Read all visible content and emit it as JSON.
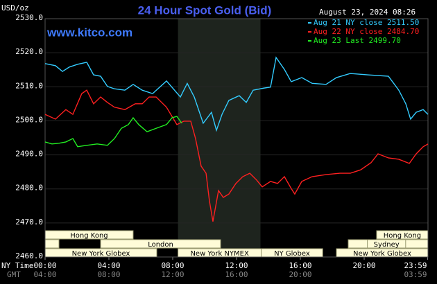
{
  "chart_data": {
    "type": "line",
    "title": "24 Hour Spot Gold (Bid)",
    "timestamp": "August 23, 2024 08:26",
    "source": "www.kitco.com",
    "unit_label": "USD/oz",
    "x_row_label": "NY Time",
    "x2_row_label": "GMT",
    "xlim": [
      0,
      24
    ],
    "ylim": [
      2460,
      2530
    ],
    "xticks": [
      {
        "value": 0,
        "label": "00:00"
      },
      {
        "value": 4,
        "label": "04:00"
      },
      {
        "value": 8,
        "label": "08:00"
      },
      {
        "value": 12,
        "label": "12:00"
      },
      {
        "value": 16,
        "label": "16:00"
      },
      {
        "value": 20,
        "label": "20:00"
      },
      {
        "value": 23.98,
        "label": "23:59"
      }
    ],
    "x2ticks": [
      {
        "value": 0,
        "label": "04:00"
      },
      {
        "value": 4,
        "label": "08:00"
      },
      {
        "value": 8,
        "label": "12:00"
      },
      {
        "value": 12,
        "label": "16:00"
      },
      {
        "value": 16,
        "label": "20:00"
      },
      {
        "value": 23.98,
        "label": "03:59"
      }
    ],
    "yticks": [
      {
        "value": 2460,
        "label": "2460.0"
      },
      {
        "value": 2470,
        "label": "2470.0"
      },
      {
        "value": 2480,
        "label": "2480.0"
      },
      {
        "value": 2490,
        "label": "2490.0"
      },
      {
        "value": 2500,
        "label": "2500.0"
      },
      {
        "value": 2510,
        "label": "2510.0"
      },
      {
        "value": 2520,
        "label": "2520.0"
      },
      {
        "value": 2530,
        "label": "2530.0"
      }
    ],
    "sessions": [
      "Hong Kong",
      "Hong Kong",
      "London",
      "Sydney",
      "New York Globex",
      "New York NYMEX",
      "NY Globex",
      "New York Globex"
    ],
    "series": [
      {
        "name": "Aug 21 NY close 2511.50",
        "color": "#33ccff",
        "x": [
          0,
          0.65,
          1.09,
          1.52,
          2.04,
          2.61,
          3.04,
          3.48,
          3.91,
          4.35,
          5,
          5.52,
          6.09,
          6.74,
          7.61,
          8.04,
          8.48,
          8.91,
          9.35,
          9.91,
          10.43,
          10.74,
          11.09,
          11.52,
          12.17,
          12.61,
          13.04,
          13.7,
          14.13,
          14.48,
          15,
          15.43,
          16.09,
          16.74,
          17.61,
          18.26,
          19.13,
          20.22,
          21.52,
          22.17,
          22.61,
          22.91,
          23.26,
          23.7,
          24
        ],
        "values": [
          2516.8,
          2516.2,
          2514.5,
          2515.8,
          2516.6,
          2517.2,
          2513.5,
          2513.1,
          2510.1,
          2509.4,
          2509,
          2510.7,
          2509,
          2508,
          2511.7,
          2509.4,
          2507,
          2511,
          2507,
          2499.3,
          2502.5,
          2497.2,
          2501.9,
          2506,
          2507.4,
          2505.4,
          2509,
          2509.6,
          2509.9,
          2518.6,
          2515.1,
          2511.5,
          2512.7,
          2511,
          2510.7,
          2512.7,
          2513.9,
          2513.5,
          2513.1,
          2509,
          2505,
          2500.5,
          2502.5,
          2503.3,
          2501.9
        ]
      },
      {
        "name": "Aug 22 NY close 2484.70",
        "color": "#ff2020",
        "x": [
          0,
          0.65,
          1.3,
          1.74,
          2.3,
          2.61,
          3.04,
          3.48,
          3.91,
          4.35,
          5,
          5.65,
          6.09,
          6.52,
          6.96,
          7.61,
          8.26,
          8.7,
          9.13,
          9.43,
          9.78,
          10.09,
          10.3,
          10.52,
          10.87,
          11.17,
          11.52,
          11.96,
          12.39,
          12.83,
          13.26,
          13.61,
          14.13,
          14.57,
          15,
          15.43,
          15.65,
          16.09,
          16.74,
          17.61,
          18.48,
          19.13,
          19.78,
          20.43,
          20.87,
          21.52,
          22.17,
          22.83,
          23.26,
          23.7,
          24
        ],
        "values": [
          2501.9,
          2500.5,
          2503.3,
          2501.9,
          2508,
          2509,
          2505,
          2507,
          2505.4,
          2504,
          2503.3,
          2505,
          2505,
          2507,
          2507,
          2504,
          2498.9,
          2499.9,
          2499.9,
          2494.8,
          2486.7,
          2484.6,
          2476.5,
          2470.4,
          2479.5,
          2477.5,
          2478.5,
          2481.6,
          2483.6,
          2484.6,
          2482.6,
          2480.6,
          2482.2,
          2481.6,
          2483.6,
          2480.1,
          2478.5,
          2482.2,
          2483.6,
          2484.2,
          2484.6,
          2484.6,
          2485.6,
          2487.7,
          2490.3,
          2489.1,
          2488.7,
          2487.5,
          2490.3,
          2492.4,
          2493.2
        ]
      },
      {
        "name": "Aug 23 Last 2499.70",
        "color": "#22ee22",
        "x": [
          0,
          0.43,
          0.87,
          1.3,
          1.74,
          2.04,
          2.61,
          3.26,
          3.91,
          4.35,
          4.78,
          5.22,
          5.52,
          5.87,
          6.39,
          6.96,
          7.61,
          7.96,
          8.26,
          8.57
        ],
        "values": [
          2493.8,
          2493.2,
          2493.4,
          2493.8,
          2494.8,
          2492.4,
          2492.8,
          2493.2,
          2492.8,
          2494.8,
          2497.8,
          2498.9,
          2500.9,
          2498.9,
          2496.8,
          2497.8,
          2498.9,
          2500.9,
          2501.3,
          2499.3
        ]
      }
    ]
  }
}
